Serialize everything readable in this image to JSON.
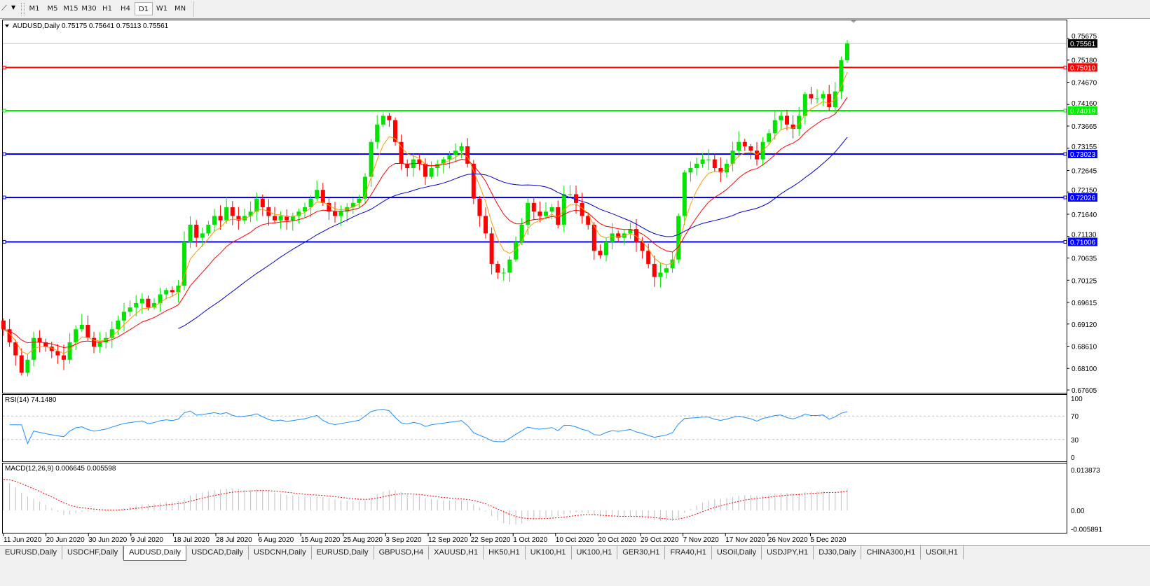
{
  "toolbar": {
    "tool_icon": "line-tool-icon",
    "timeframes": [
      "M1",
      "M5",
      "M15",
      "M30",
      "H1",
      "H4",
      "D1",
      "W1",
      "MN"
    ],
    "active_timeframe": "D1"
  },
  "chart": {
    "header": "AUDUSD,Daily  0.75175 0.75641 0.75113 0.75561",
    "colors": {
      "bull": "#00e400",
      "bear": "#ff0000",
      "ma_fast": "#ff9900",
      "ma_mid": "#ff0000",
      "ma_slow": "#0000cc",
      "rsi": "#1e90ff",
      "macd_hist": "#c0c0c0",
      "macd_signal": "#ff0000"
    },
    "price_ticks": [
      "0.75675",
      "0.75180",
      "0.74670",
      "0.74160",
      "0.73665",
      "0.73155",
      "0.72645",
      "0.72150",
      "0.71640",
      "0.71130",
      "0.70635",
      "0.70125",
      "0.69615",
      "0.69120",
      "0.68610",
      "0.68100",
      "0.67605"
    ],
    "bid": {
      "price": 0.75561,
      "label": "0.75561",
      "color": "#000000"
    },
    "levels": [
      {
        "price": 0.7501,
        "label": "0.75010",
        "color": "#ff0000"
      },
      {
        "price": 0.74019,
        "label": "0.74019",
        "color": "#00ee00"
      },
      {
        "price": 0.73023,
        "label": "0.73023",
        "color": "#0000ff"
      },
      {
        "price": 0.72026,
        "label": "0.72026",
        "color": "#0000ff"
      },
      {
        "price": 0.71006,
        "label": "0.71006",
        "color": "#0000ff"
      }
    ],
    "time_labels": [
      "11 Jun 2020",
      "20 Jun 2020",
      "30 Jun 2020",
      "9 Jul 2020",
      "18 Jul 2020",
      "28 Jul 2020",
      "6 Aug 2020",
      "15 Aug 2020",
      "25 Aug 2020",
      "3 Sep 2020",
      "12 Sep 2020",
      "22 Sep 2020",
      "1 Oct 2020",
      "10 Oct 2020",
      "20 Oct 2020",
      "29 Oct 2020",
      "7 Nov 2020",
      "17 Nov 2020",
      "26 Nov 2020",
      "5 Dec 2020"
    ],
    "rsi": {
      "label": "RSI(14) 74.1480",
      "ticks": [
        "100",
        "70",
        "30",
        "0"
      ]
    },
    "macd": {
      "label": "MACD(12,26,9) 0.006645 0.005598",
      "ticks": [
        "0.013873",
        "0.00",
        "-0.005891"
      ]
    }
  },
  "chart_data": {
    "type": "candlestick",
    "symbol": "AUDUSD",
    "timeframe": "Daily",
    "last_bar": {
      "open": 0.75175,
      "high": 0.75641,
      "low": 0.75113,
      "close": 0.75561
    },
    "ylim": [
      0.67605,
      0.75675
    ],
    "closes": [
      0.69,
      0.687,
      0.684,
      0.68,
      0.683,
      0.688,
      0.687,
      0.686,
      0.685,
      0.684,
      0.683,
      0.687,
      0.69,
      0.691,
      0.688,
      0.686,
      0.687,
      0.688,
      0.69,
      0.692,
      0.694,
      0.695,
      0.696,
      0.697,
      0.695,
      0.696,
      0.698,
      0.699,
      0.6985,
      0.7,
      0.71,
      0.714,
      0.711,
      0.712,
      0.714,
      0.716,
      0.715,
      0.718,
      0.716,
      0.715,
      0.716,
      0.717,
      0.72,
      0.718,
      0.716,
      0.715,
      0.716,
      0.715,
      0.716,
      0.717,
      0.718,
      0.72,
      0.722,
      0.719,
      0.717,
      0.716,
      0.717,
      0.718,
      0.719,
      0.72,
      0.725,
      0.733,
      0.737,
      0.739,
      0.738,
      0.733,
      0.728,
      0.727,
      0.729,
      0.728,
      0.725,
      0.727,
      0.728,
      0.729,
      0.73,
      0.731,
      0.732,
      0.728,
      0.72,
      0.716,
      0.712,
      0.705,
      0.703,
      0.703,
      0.706,
      0.71,
      0.714,
      0.719,
      0.717,
      0.716,
      0.717,
      0.718,
      0.714,
      0.721,
      0.721,
      0.719,
      0.716,
      0.714,
      0.708,
      0.707,
      0.71,
      0.712,
      0.711,
      0.712,
      0.713,
      0.71,
      0.708,
      0.705,
      0.702,
      0.703,
      0.704,
      0.706,
      0.716,
      0.726,
      0.727,
      0.728,
      0.729,
      0.729,
      0.727,
      0.726,
      0.728,
      0.731,
      0.733,
      0.732,
      0.731,
      0.729,
      0.733,
      0.735,
      0.738,
      0.739,
      0.737,
      0.736,
      0.739,
      0.744,
      0.743,
      0.743,
      0.744,
      0.741,
      0.7446,
      0.75175,
      0.75561
    ]
  },
  "tabs": [
    "EURUSD,Daily",
    "USDCHF,Daily",
    "AUDUSD,Daily",
    "USDCAD,Daily",
    "USDCNH,Daily",
    "EURUSD,Daily",
    "GBPUSD,H4",
    "XAUUSD,H1",
    "HK50,H1",
    "UK100,H1",
    "UK100,H1",
    "GER30,H1",
    "FRA40,H1",
    "USOil,Daily",
    "USDJPY,H1",
    "DJ30,Daily",
    "CHINA300,H1",
    "USOil,H1"
  ],
  "active_tab": 2
}
